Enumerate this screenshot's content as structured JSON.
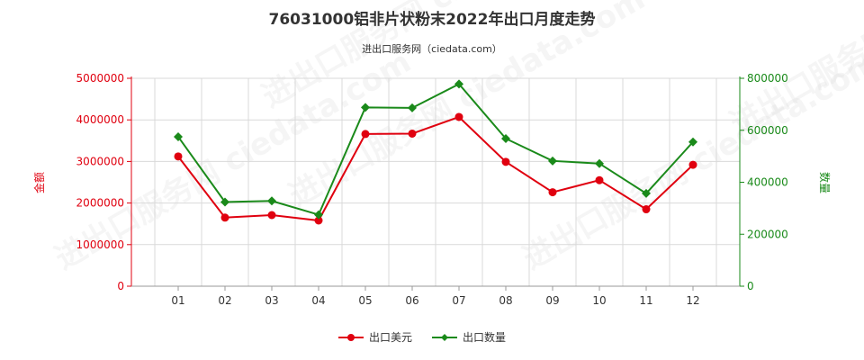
{
  "chart_data": {
    "type": "line",
    "title": "76031000铝非片状粉末2022年出口月度走势",
    "subtitle": "进出口服务网（ciedata.com）",
    "categories": [
      "01",
      "02",
      "03",
      "04",
      "05",
      "06",
      "07",
      "08",
      "09",
      "10",
      "11",
      "12"
    ],
    "y_left": {
      "label": "金额",
      "ylim": [
        0,
        5000000
      ],
      "ticks": [
        "0",
        "1000000",
        "2000000",
        "3000000",
        "4000000",
        "5000000"
      ],
      "color": "#e0000f"
    },
    "y_right": {
      "label": "数量",
      "ylim": [
        0,
        800000
      ],
      "ticks": [
        "0",
        "200000",
        "400000",
        "600000",
        "800000"
      ],
      "color": "#1a8a1a"
    },
    "series": [
      {
        "name": "出口美元",
        "axis": "left",
        "color": "#e0000f",
        "values": [
          3120000,
          1650000,
          1710000,
          1580000,
          3660000,
          3670000,
          4070000,
          2990000,
          2260000,
          2550000,
          1850000,
          2920000
        ]
      },
      {
        "name": "出口数量",
        "axis": "right",
        "color": "#1a8a1a",
        "values": [
          575000,
          324000,
          328000,
          275000,
          688000,
          686000,
          778000,
          568000,
          482000,
          472000,
          357000,
          555000
        ]
      }
    ],
    "grid": true,
    "legend": "bottom-center"
  },
  "watermark": "进出口服务网 ciedata.com"
}
